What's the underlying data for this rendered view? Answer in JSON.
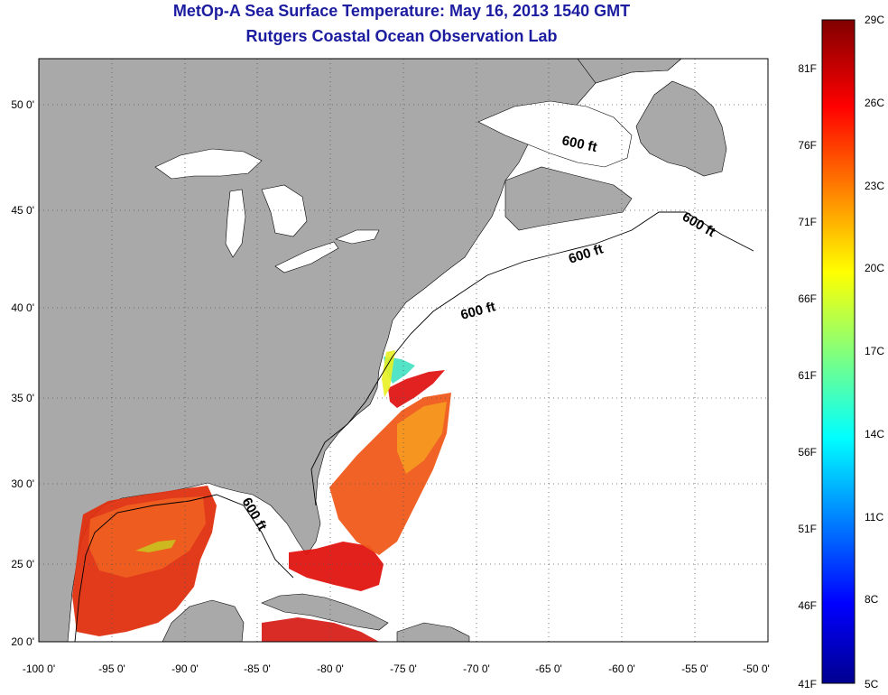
{
  "title": "MetOp-A Sea Surface Temperature:  May 16, 2013 1540 GMT",
  "subtitle": "Rutgers Coastal Ocean Observation Lab",
  "map": {
    "lon_range": [
      -100,
      -50
    ],
    "lat_range": [
      20,
      52
    ],
    "lon_ticks": [
      "-100 0'",
      "-95 0'",
      "-90 0'",
      "-85 0'",
      "-80 0'",
      "-75 0'",
      "-70 0'",
      "-65 0'",
      "-60 0'",
      "-55 0'",
      "-50 0'"
    ],
    "lat_ticks": [
      "20 0'",
      "25 0'",
      "30 0'",
      "35 0'",
      "40 0'",
      "45 0'",
      "50 0'"
    ],
    "contour_label": "600 ft",
    "land_color": "#a9a9a9",
    "ocean_color": "#ffffff"
  },
  "colorbar": {
    "celsius_labels": [
      "29C",
      "26C",
      "23C",
      "20C",
      "17C",
      "14C",
      "11C",
      "8C",
      "5C"
    ],
    "fahrenheit_labels": [
      "81F",
      "76F",
      "71F",
      "66F",
      "61F",
      "56F",
      "51F",
      "46F",
      "41F"
    ],
    "range_celsius": [
      5,
      29
    ],
    "colormap": "jet"
  }
}
